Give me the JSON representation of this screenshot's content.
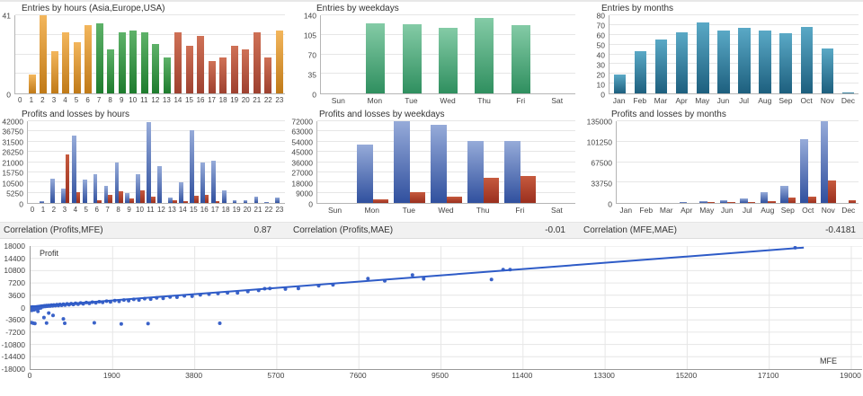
{
  "correlations": [
    {
      "label": "Correlation (Profits,MFE)",
      "value": "0.87"
    },
    {
      "label": "Correlation (Profits,MAE)",
      "value": "-0.01"
    },
    {
      "label": "Correlation (MFE,MAE)",
      "value": "-0.4181"
    }
  ],
  "chart_data": [
    {
      "type": "bar",
      "title": "Entries by hours (Asia,Europe,USA)",
      "categories": [
        "0",
        "1",
        "2",
        "3",
        "4",
        "5",
        "6",
        "7",
        "8",
        "9",
        "10",
        "11",
        "12",
        "13",
        "14",
        "15",
        "16",
        "17",
        "18",
        "19",
        "20",
        "21",
        "22",
        "23"
      ],
      "values": [
        0,
        10,
        41,
        22,
        32,
        27,
        36,
        37,
        23,
        32,
        33,
        32,
        26,
        19,
        32,
        25,
        30,
        17,
        19,
        25,
        23,
        32,
        19,
        33
      ],
      "groups": [
        "asia",
        "asia",
        "asia",
        "asia",
        "asia",
        "asia",
        "asia",
        "europe",
        "europe",
        "europe",
        "europe",
        "europe",
        "europe",
        "europe",
        "usa",
        "usa",
        "usa",
        "usa",
        "usa",
        "usa",
        "usa",
        "usa",
        "usa",
        "asia"
      ],
      "palette": {
        "asia": [
          "#f3b65c",
          "#c07a18"
        ],
        "europe": [
          "#5eb269",
          "#1e7c2e"
        ],
        "usa": [
          "#cf7156",
          "#9e4130"
        ]
      },
      "ylim": [
        0,
        41
      ],
      "yticks": [
        0,
        41
      ],
      "ygrid": [
        10.25,
        20.5,
        30.75,
        41
      ]
    },
    {
      "type": "bar",
      "title": "Entries by weekdays",
      "categories": [
        "Sun",
        "Mon",
        "Tue",
        "Wed",
        "Thu",
        "Fri",
        "Sat"
      ],
      "values": [
        0,
        126,
        124,
        117,
        136,
        122,
        0
      ],
      "palette": {
        "default": [
          "#84cba6",
          "#2f8f5f"
        ]
      },
      "ylim": [
        0,
        140
      ],
      "yticks": [
        0,
        35,
        70,
        105,
        140
      ]
    },
    {
      "type": "bar",
      "title": "Entries by months",
      "categories": [
        "Jan",
        "Feb",
        "Mar",
        "Apr",
        "May",
        "Jun",
        "Jul",
        "Aug",
        "Sep",
        "Oct",
        "Nov",
        "Dec"
      ],
      "values": [
        19,
        43,
        55,
        63,
        73,
        64,
        67,
        64,
        62,
        68,
        46,
        1
      ],
      "palette": {
        "default": [
          "#5aa9c6",
          "#1d5f7e"
        ]
      },
      "ylim": [
        0,
        80
      ],
      "yticks": [
        0,
        10,
        20,
        30,
        40,
        50,
        60,
        70,
        80
      ]
    },
    {
      "type": "bar",
      "title": "Profits and losses by hours",
      "categories": [
        "0",
        "1",
        "2",
        "3",
        "4",
        "5",
        "6",
        "7",
        "8",
        "9",
        "10",
        "11",
        "12",
        "13",
        "14",
        "15",
        "16",
        "17",
        "18",
        "19",
        "20",
        "21",
        "22",
        "23"
      ],
      "series": [
        {
          "name": "Profit",
          "colors": [
            "#96abd9",
            "#30509e"
          ],
          "values": [
            0,
            1000,
            12300,
            7400,
            34400,
            11800,
            14700,
            8600,
            20900,
            5300,
            15000,
            41700,
            18800,
            2700,
            10600,
            37300,
            20900,
            21800,
            6500,
            1200,
            1200,
            3300,
            300,
            2600
          ]
        },
        {
          "name": "Loss",
          "colors": [
            "#c65a3e",
            "#9a2f1e"
          ],
          "values": [
            0,
            0,
            0,
            24700,
            5600,
            0,
            1400,
            4100,
            6100,
            2100,
            6500,
            3300,
            0,
            1500,
            900,
            3500,
            4200,
            900,
            0,
            0,
            0,
            0,
            0,
            0
          ]
        }
      ],
      "ylim": [
        0,
        42000
      ],
      "yticks": [
        0,
        5250,
        10500,
        15750,
        21000,
        26250,
        31500,
        36750,
        42000
      ]
    },
    {
      "type": "bar",
      "title": "Profits and losses by weekdays",
      "categories": [
        "Sun",
        "Mon",
        "Tue",
        "Wed",
        "Thu",
        "Fri",
        "Sat"
      ],
      "series": [
        {
          "name": "Profit",
          "colors": [
            "#96abd9",
            "#30509e"
          ],
          "values": [
            0,
            51400,
            72000,
            69200,
            54300,
            54800,
            0
          ]
        },
        {
          "name": "Loss",
          "colors": [
            "#c65a3e",
            "#9a2f1e"
          ],
          "values": [
            0,
            3300,
            9800,
            5400,
            22400,
            23700,
            0
          ]
        }
      ],
      "ylim": [
        0,
        72000
      ],
      "yticks": [
        0,
        9000,
        18000,
        27000,
        36000,
        45000,
        54000,
        63000,
        72000
      ]
    },
    {
      "type": "bar",
      "title": "Profits and losses by months",
      "categories": [
        "Jan",
        "Feb",
        "Mar",
        "Apr",
        "May",
        "Jun",
        "Jul",
        "Aug",
        "Sep",
        "Oct",
        "Nov",
        "Dec"
      ],
      "series": [
        {
          "name": "Profit",
          "colors": [
            "#96abd9",
            "#30509e"
          ],
          "values": [
            0,
            0,
            300,
            1900,
            3300,
            4300,
            7200,
            17700,
            27800,
            104800,
            135000,
            0
          ]
        },
        {
          "name": "Loss",
          "colors": [
            "#c65a3e",
            "#9a2f1e"
          ],
          "values": [
            0,
            0,
            0,
            600,
            1000,
            1500,
            1500,
            3400,
            8600,
            11000,
            36900,
            3800
          ]
        }
      ],
      "ylim": [
        0,
        135000
      ],
      "yticks": [
        0,
        33750,
        67500,
        101250,
        135000
      ]
    },
    {
      "type": "scatter",
      "xlabel": "MFE",
      "ylabel": "Profit",
      "xlim": [
        0,
        19300
      ],
      "ylim": [
        -18000,
        18000
      ],
      "xticks": [
        0,
        1900,
        3800,
        5700,
        7600,
        9500,
        11400,
        13300,
        15200,
        17100,
        19000
      ],
      "yticks": [
        -18000,
        -14400,
        -10800,
        -7200,
        -3600,
        0,
        3600,
        7200,
        10800,
        14400,
        18000
      ],
      "point_color": "#3a62c8",
      "line_color": "#2e5bc7",
      "trend": {
        "x1": 0,
        "y1": 250,
        "x2": 17900,
        "y2": 17550
      },
      "points": [
        [
          5,
          -100
        ],
        [
          8,
          -320
        ],
        [
          10,
          60
        ],
        [
          12,
          -520
        ],
        [
          15,
          -160
        ],
        [
          18,
          -660
        ],
        [
          20,
          110
        ],
        [
          22,
          -260
        ],
        [
          25,
          -810
        ],
        [
          28,
          -430
        ],
        [
          30,
          70
        ],
        [
          33,
          -190
        ],
        [
          36,
          -560
        ],
        [
          40,
          -90
        ],
        [
          43,
          -360
        ],
        [
          46,
          -710
        ],
        [
          50,
          160
        ],
        [
          53,
          -230
        ],
        [
          57,
          -490
        ],
        [
          60,
          -70
        ],
        [
          64,
          -330
        ],
        [
          68,
          -590
        ],
        [
          72,
          100
        ],
        [
          76,
          -160
        ],
        [
          80,
          -410
        ],
        [
          85,
          -650
        ],
        [
          90,
          50
        ],
        [
          95,
          -270
        ],
        [
          100,
          -510
        ],
        [
          105,
          130
        ],
        [
          110,
          -190
        ],
        [
          116,
          -390
        ],
        [
          122,
          -90
        ],
        [
          128,
          -290
        ],
        [
          135,
          190
        ],
        [
          142,
          -130
        ],
        [
          150,
          -330
        ],
        [
          158,
          70
        ],
        [
          166,
          -210
        ],
        [
          175,
          270
        ],
        [
          185,
          -70
        ],
        [
          195,
          150
        ],
        [
          205,
          -170
        ],
        [
          215,
          330
        ],
        [
          226,
          90
        ],
        [
          238,
          -100
        ],
        [
          250,
          390
        ],
        [
          262,
          180
        ],
        [
          280,
          430
        ],
        [
          300,
          270
        ],
        [
          320,
          530
        ],
        [
          345,
          310
        ],
        [
          370,
          570
        ],
        [
          395,
          390
        ],
        [
          420,
          620
        ],
        [
          450,
          410
        ],
        [
          480,
          710
        ],
        [
          510,
          490
        ],
        [
          540,
          770
        ],
        [
          575,
          550
        ],
        [
          610,
          830
        ],
        [
          645,
          610
        ],
        [
          680,
          910
        ],
        [
          720,
          670
        ],
        [
          760,
          990
        ],
        [
          800,
          730
        ],
        [
          845,
          1070
        ],
        [
          890,
          810
        ],
        [
          940,
          1160
        ],
        [
          990,
          890
        ],
        [
          1040,
          1250
        ],
        [
          1100,
          990
        ],
        [
          1160,
          1350
        ],
        [
          1220,
          1090
        ],
        [
          1290,
          1460
        ],
        [
          1360,
          1210
        ],
        [
          1430,
          1570
        ],
        [
          1510,
          1360
        ],
        [
          1590,
          1710
        ],
        [
          1670,
          1490
        ],
        [
          1760,
          1860
        ],
        [
          1850,
          1630
        ],
        [
          1950,
          2030
        ],
        [
          2050,
          1810
        ],
        [
          2160,
          2210
        ],
        [
          2270,
          2010
        ],
        [
          2390,
          2390
        ],
        [
          2510,
          2210
        ],
        [
          2640,
          2610
        ],
        [
          2780,
          2460
        ],
        [
          2920,
          2810
        ],
        [
          3070,
          2710
        ],
        [
          3230,
          3110
        ],
        [
          3390,
          3010
        ],
        [
          3560,
          3410
        ],
        [
          3740,
          3310
        ],
        [
          3930,
          3710
        ],
        [
          4130,
          3910
        ],
        [
          4340,
          4110
        ],
        [
          4560,
          4310
        ],
        [
          4790,
          4310
        ],
        [
          5030,
          4710
        ],
        [
          5280,
          5010
        ],
        [
          5420,
          5510
        ],
        [
          5540,
          5610
        ],
        [
          5900,
          5410
        ],
        [
          6200,
          5610
        ],
        [
          6670,
          6350
        ],
        [
          7000,
          6610
        ],
        [
          7810,
          8470
        ],
        [
          8200,
          7810
        ],
        [
          8840,
          9530
        ],
        [
          9100,
          8410
        ],
        [
          10670,
          8210
        ],
        [
          10940,
          11110
        ],
        [
          11100,
          11110
        ],
        [
          17700,
          17510
        ],
        [
          170,
          -1110
        ],
        [
          310,
          -2910
        ],
        [
          420,
          -1610
        ],
        [
          520,
          -2310
        ],
        [
          760,
          -3310
        ],
        [
          20,
          -4410
        ],
        [
          60,
          -4560
        ],
        [
          100,
          -4660
        ],
        [
          370,
          -4510
        ],
        [
          790,
          -4610
        ],
        [
          1475,
          -4460
        ],
        [
          2100,
          -4810
        ],
        [
          2720,
          -4710
        ],
        [
          4380,
          -4610
        ]
      ]
    }
  ]
}
